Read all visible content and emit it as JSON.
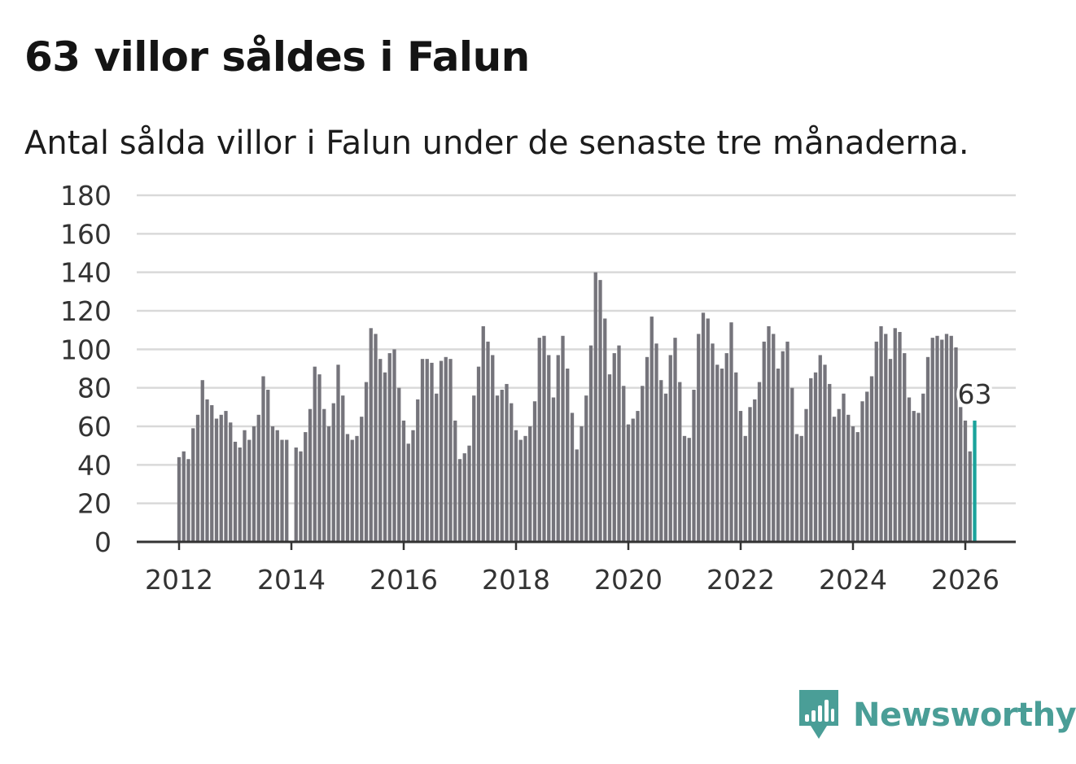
{
  "title": "63 villor såldes i Falun",
  "subtitle": "Antal sålda villor i Falun under de senaste tre månaderna.",
  "brand": {
    "name": "Newsworthy",
    "color": "#4a9e97",
    "icon": "bar-chart-speech-bubble-icon"
  },
  "colors": {
    "bar": "#75747b",
    "highlight": "#1aa39b",
    "grid": "#d9d9d9",
    "axis": "#333333"
  },
  "chart_data": {
    "type": "bar",
    "title": "63 villor såldes i Falun",
    "xlabel": "",
    "ylabel": "",
    "ylim": [
      0,
      180
    ],
    "yticks": [
      0,
      20,
      40,
      60,
      80,
      100,
      120,
      140,
      160,
      180
    ],
    "xticks": [
      "2012",
      "2014",
      "2016",
      "2018",
      "2020",
      "2022",
      "2024",
      "2026"
    ],
    "grid": true,
    "start": "2012-01",
    "highlight_label": "63",
    "values": [
      44,
      47,
      43,
      59,
      66,
      84,
      74,
      71,
      64,
      66,
      68,
      62,
      52,
      49,
      58,
      53,
      60,
      66,
      86,
      79,
      60,
      58,
      53,
      53,
      0,
      49,
      47,
      57,
      69,
      91,
      87,
      69,
      60,
      72,
      92,
      76,
      56,
      53,
      55,
      65,
      83,
      111,
      108,
      95,
      88,
      98,
      100,
      80,
      63,
      51,
      58,
      74,
      95,
      95,
      93,
      77,
      94,
      96,
      95,
      63,
      43,
      46,
      50,
      76,
      91,
      112,
      104,
      97,
      76,
      79,
      82,
      72,
      58,
      53,
      55,
      60,
      73,
      106,
      107,
      97,
      75,
      97,
      107,
      90,
      67,
      48,
      60,
      76,
      102,
      140,
      136,
      116,
      87,
      98,
      102,
      81,
      61,
      64,
      68,
      81,
      96,
      117,
      103,
      84,
      77,
      97,
      106,
      83,
      55,
      54,
      79,
      108,
      119,
      116,
      103,
      92,
      90,
      98,
      114,
      88,
      68,
      55,
      70,
      74,
      83,
      104,
      112,
      108,
      90,
      99,
      104,
      80,
      56,
      55,
      69,
      85,
      88,
      97,
      92,
      82,
      65,
      69,
      77,
      66,
      60,
      57,
      73,
      78,
      86,
      104,
      112,
      108,
      95,
      111,
      109,
      98,
      75,
      68,
      67,
      77,
      96,
      106,
      107,
      105,
      108,
      107,
      101,
      70,
      63,
      47,
      63
    ]
  }
}
